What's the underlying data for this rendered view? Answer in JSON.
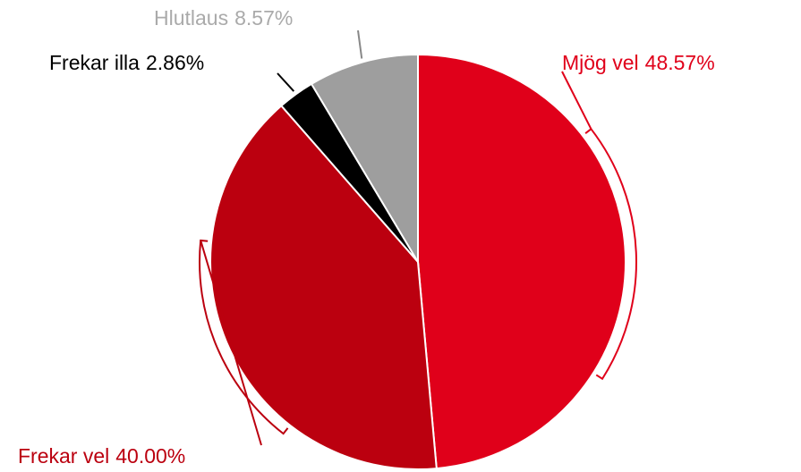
{
  "chart_data": {
    "type": "pie",
    "categories": [
      "Mjög vel",
      "Frekar vel",
      "Frekar illa",
      "Hlutlaus"
    ],
    "values": [
      48.57,
      40.0,
      2.86,
      8.57
    ],
    "value_labels": [
      "48.57%",
      "40.00%",
      "2.86%",
      "8.57%"
    ],
    "colors": [
      "#e0001a",
      "#bb000f",
      "#000000",
      "#9e9e9e"
    ]
  }
}
